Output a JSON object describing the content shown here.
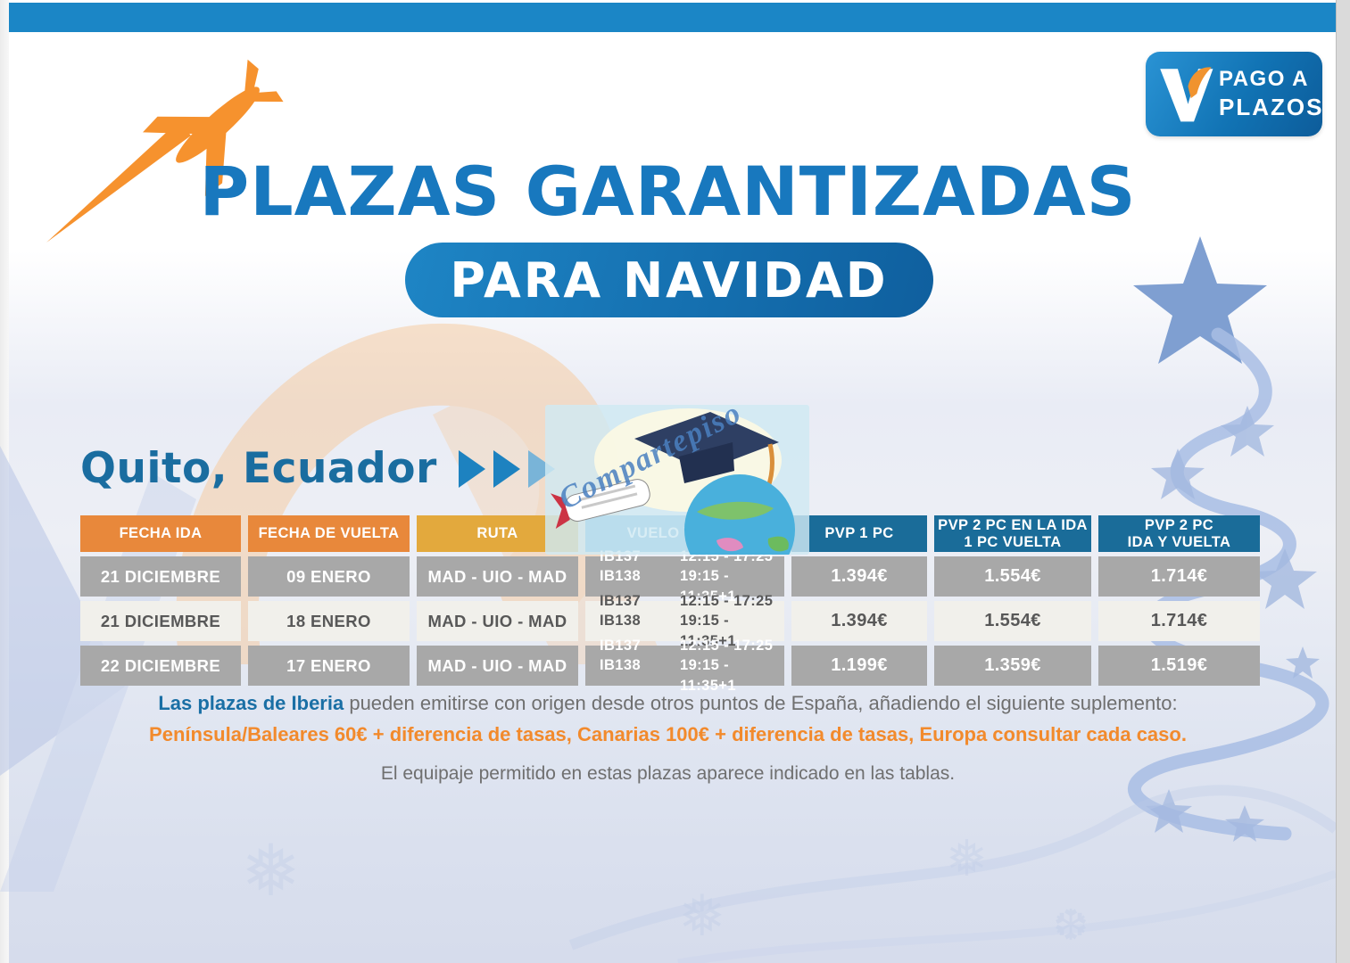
{
  "badge": {
    "line1": "PAGO A",
    "line2": "PLAZOS"
  },
  "title": "PLAZAS GARANTIZADAS",
  "subtitle_pill": "PARA NAVIDAD",
  "destination": {
    "heading": "Quito, Ecuador"
  },
  "image_watermark": "Compartepiso",
  "table": {
    "headers": [
      "FECHA IDA",
      "FECHA DE VUELTA",
      "RUTA",
      "VUELO Y HORA",
      "PVP 1 PC",
      "PVP 2 PC EN LA IDA\n1 PC VUELTA",
      "PVP 2 PC\nIDA Y VUELTA"
    ],
    "rows": [
      {
        "fecha_ida": "21 DICIEMBRE",
        "fecha_vuelta": "09 ENERO",
        "ruta": "MAD - UIO - MAD",
        "vuelos": [
          [
            "IB137",
            "12:15 - 17:25"
          ],
          [
            "IB138",
            "19:15 - 11:35+1"
          ]
        ],
        "pvp_1pc": "1.394€",
        "pvp_2pc_ida": "1.554€",
        "pvp_2pc_ida_vuelta": "1.714€",
        "shade": "dark"
      },
      {
        "fecha_ida": "21 DICIEMBRE",
        "fecha_vuelta": "18 ENERO",
        "ruta": "MAD - UIO - MAD",
        "vuelos": [
          [
            "IB137",
            "12:15 - 17:25"
          ],
          [
            "IB138",
            "19:15 - 11:35+1"
          ]
        ],
        "pvp_1pc": "1.394€",
        "pvp_2pc_ida": "1.554€",
        "pvp_2pc_ida_vuelta": "1.714€",
        "shade": "light"
      },
      {
        "fecha_ida": "22 DICIEMBRE",
        "fecha_vuelta": "17 ENERO",
        "ruta": "MAD - UIO - MAD",
        "vuelos": [
          [
            "IB137",
            "12:15 - 17:25"
          ],
          [
            "IB138",
            "19:15 - 11:35+1"
          ]
        ],
        "pvp_1pc": "1.199€",
        "pvp_2pc_ida": "1.359€",
        "pvp_2pc_ida_vuelta": "1.519€",
        "shade": "dark"
      }
    ]
  },
  "notes": {
    "line1_bold": "Las plazas de Iberia",
    "line1_rest": " pueden emitirse con origen desde otros puntos de España, añadiendo el siguiente suplemento:",
    "line2": "Península/Baleares 60€ + diferencia de tasas, Canarias 100€ + diferencia de tasas, Europa consultar cada caso.",
    "line3": "El equipaje permitido en estas plazas aparece indicado en las tablas."
  },
  "colors": {
    "top_bar": "#1b86c6",
    "title_blue": "#1878be",
    "header_orange": "#e8883b",
    "header_gold": "#e3a93d",
    "header_light_blue": "#58a7d0",
    "header_dark_blue": "#1a6c99",
    "row_gray": "#a8a8a8",
    "row_light": "#f1f0eb",
    "accent_orange": "#f28a2c"
  }
}
